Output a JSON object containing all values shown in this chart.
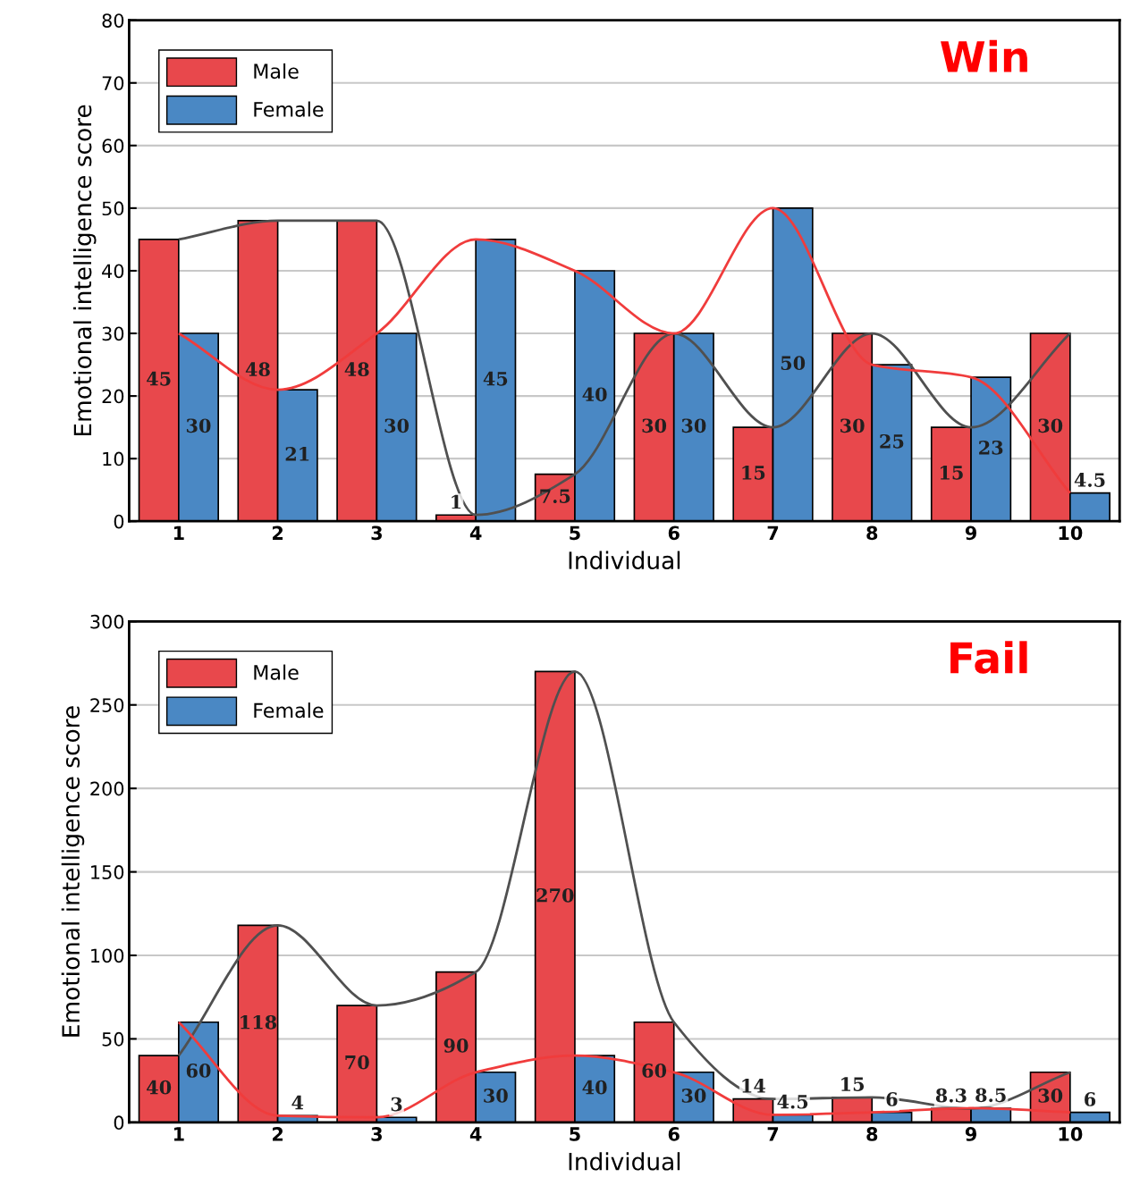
{
  "chart_data": [
    {
      "type": "bar",
      "title": "Win",
      "xlabel": "Individual",
      "ylabel": "Emotional intelligence score",
      "categories": [
        "1",
        "2",
        "3",
        "4",
        "5",
        "6",
        "7",
        "8",
        "9",
        "10"
      ],
      "series": [
        {
          "name": "Male",
          "color": "#e8484c",
          "values": [
            45,
            48,
            48,
            1,
            7.5,
            30,
            15,
            30,
            15,
            30
          ],
          "value_labels": [
            "45",
            "48",
            "48",
            "1",
            "7.5",
            "30",
            "15",
            "30",
            "15",
            "30"
          ]
        },
        {
          "name": "Female",
          "color": "#4a88c4",
          "values": [
            30,
            21,
            30,
            45,
            40,
            30,
            50,
            25,
            23,
            4.5
          ],
          "value_labels": [
            "30",
            "21",
            "30",
            "45",
            "40",
            "30",
            "50",
            "25",
            "23",
            "4.5"
          ]
        },
        {
          "type": "line",
          "color": "#505050",
          "values": [
            45,
            48,
            48,
            1,
            7.5,
            30,
            15,
            30,
            15,
            30
          ]
        },
        {
          "type": "line",
          "color": "#f03c3c",
          "values": [
            30,
            21,
            30,
            45,
            40,
            30,
            50,
            25,
            23,
            4.5
          ]
        }
      ],
      "ylim": [
        0,
        80
      ],
      "yticks": [
        0,
        10,
        20,
        30,
        40,
        50,
        60,
        70,
        80
      ],
      "grid": "y",
      "legend": "top left"
    },
    {
      "type": "bar",
      "title": "Fail",
      "xlabel": "Individual",
      "ylabel": "Emotional intelligence score",
      "categories": [
        "1",
        "2",
        "3",
        "4",
        "5",
        "6",
        "7",
        "8",
        "9",
        "10"
      ],
      "series": [
        {
          "name": "Male",
          "color": "#e8484c",
          "values": [
            40,
            118,
            70,
            90,
            270,
            60,
            14,
            15,
            8.3,
            30
          ],
          "value_labels": [
            "40",
            "118",
            "70",
            "90",
            "270",
            "60",
            "14",
            "15",
            "8.3",
            "30"
          ]
        },
        {
          "name": "Female",
          "color": "#4a88c4",
          "values": [
            60,
            4,
            3,
            30,
            40,
            30,
            4.5,
            6,
            8.5,
            6
          ],
          "value_labels": [
            "60",
            "4",
            "3",
            "30",
            "40",
            "30",
            "4.5",
            "6",
            "8.5",
            "6"
          ]
        },
        {
          "type": "line",
          "color": "#505050",
          "values": [
            40,
            118,
            70,
            90,
            270,
            60,
            14,
            15,
            8.3,
            30
          ]
        },
        {
          "type": "line",
          "color": "#f03c3c",
          "values": [
            60,
            4,
            3,
            30,
            40,
            30,
            4.5,
            6,
            8.5,
            6
          ]
        }
      ],
      "ylim": [
        0,
        300
      ],
      "yticks": [
        0,
        50,
        100,
        150,
        200,
        250,
        300
      ],
      "grid": "y",
      "legend": "top left"
    }
  ]
}
